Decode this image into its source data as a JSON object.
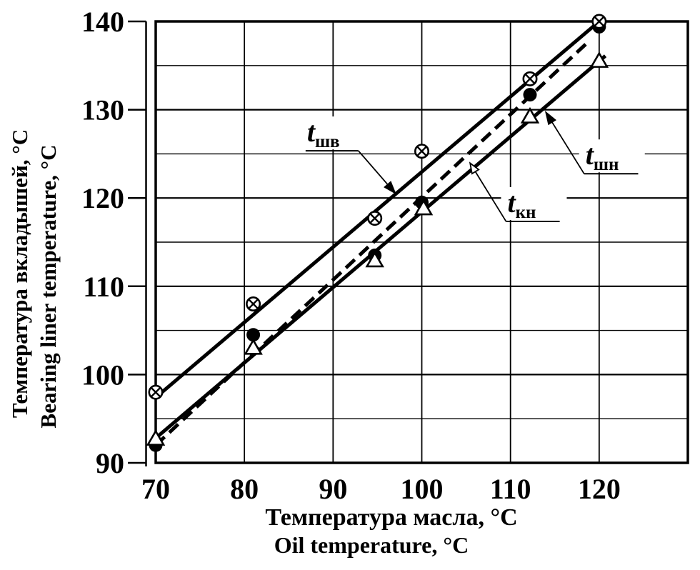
{
  "figure": {
    "background": "#ffffff",
    "ink": "#000000"
  },
  "chart_data": {
    "type": "line",
    "title": "",
    "x_axis": {
      "label_ru": "Температура масла, °С",
      "label_en": "Oil temperature, °С",
      "range": [
        70,
        130
      ],
      "ticks": [
        70,
        80,
        90,
        100,
        110,
        120
      ],
      "gridlines": [
        80,
        90,
        100,
        110,
        120
      ]
    },
    "y_axis": {
      "label_ru": "Температура вкладышей, °С",
      "label_en": "Bearing liner temperature, °С",
      "range": [
        90,
        140
      ],
      "ticks": [
        90,
        100,
        110,
        120,
        130,
        140
      ],
      "gridlines_major": [
        100,
        110,
        120,
        130
      ],
      "gridlines_minor": [
        95,
        105,
        115,
        125,
        135
      ]
    },
    "series": [
      {
        "id": "t_kn",
        "label_main": "t",
        "label_sub": "кн",
        "marker": "filled-circle",
        "line_style": "dashed",
        "points": [
          [
            70,
            92
          ],
          [
            81,
            104.5
          ],
          [
            94.7,
            113.5
          ],
          [
            100,
            119.5
          ],
          [
            112.2,
            131.7
          ],
          [
            120,
            139.4
          ]
        ],
        "fit_line": [
          [
            70,
            92
          ],
          [
            119,
            137.9
          ]
        ]
      },
      {
        "id": "t_shn",
        "label_main": "t",
        "label_sub": "шн",
        "marker": "open-triangle",
        "line_style": "solid",
        "points": [
          [
            70,
            92.7
          ],
          [
            81,
            103
          ],
          [
            94.7,
            112.9
          ],
          [
            100.2,
            118.8
          ],
          [
            112.2,
            129.2
          ],
          [
            120,
            135.5
          ]
        ],
        "fit_line": [
          [
            70,
            92.8
          ],
          [
            120.7,
            136.1
          ]
        ]
      },
      {
        "id": "t_shv",
        "label_main": "t",
        "label_sub": "шв",
        "marker": "circle-cross",
        "line_style": "solid",
        "points": [
          [
            70,
            98
          ],
          [
            81,
            108
          ],
          [
            94.7,
            117.7
          ],
          [
            100,
            125.3
          ],
          [
            112.2,
            133.5
          ],
          [
            120,
            140
          ]
        ],
        "fit_line": [
          [
            70,
            97.4
          ],
          [
            120,
            140
          ]
        ]
      }
    ],
    "annotations": [
      {
        "series": "t_shv",
        "text_main": "t",
        "text_sub": "шв",
        "underline_x": [
          86.9,
          92.85
        ],
        "underline_y": 125.35,
        "leader_from": "right",
        "tip": [
          97.0,
          120.55
        ],
        "arrowhead": "filled"
      },
      {
        "series": "t_shn",
        "text_main": "t",
        "text_sub": "шн",
        "underline_x": [
          118.3,
          124.4
        ],
        "underline_y": 122.75,
        "leader_from": "left",
        "tip": [
          114.0,
          129.7
        ],
        "arrowhead": "filled"
      },
      {
        "series": "t_kn",
        "text_main": "t",
        "text_sub": "кн",
        "underline_x": [
          109.5,
          115.55
        ],
        "underline_y": 117.35,
        "leader_from": "left",
        "tip": [
          105.45,
          123.95
        ],
        "arrowhead": "open"
      }
    ]
  }
}
